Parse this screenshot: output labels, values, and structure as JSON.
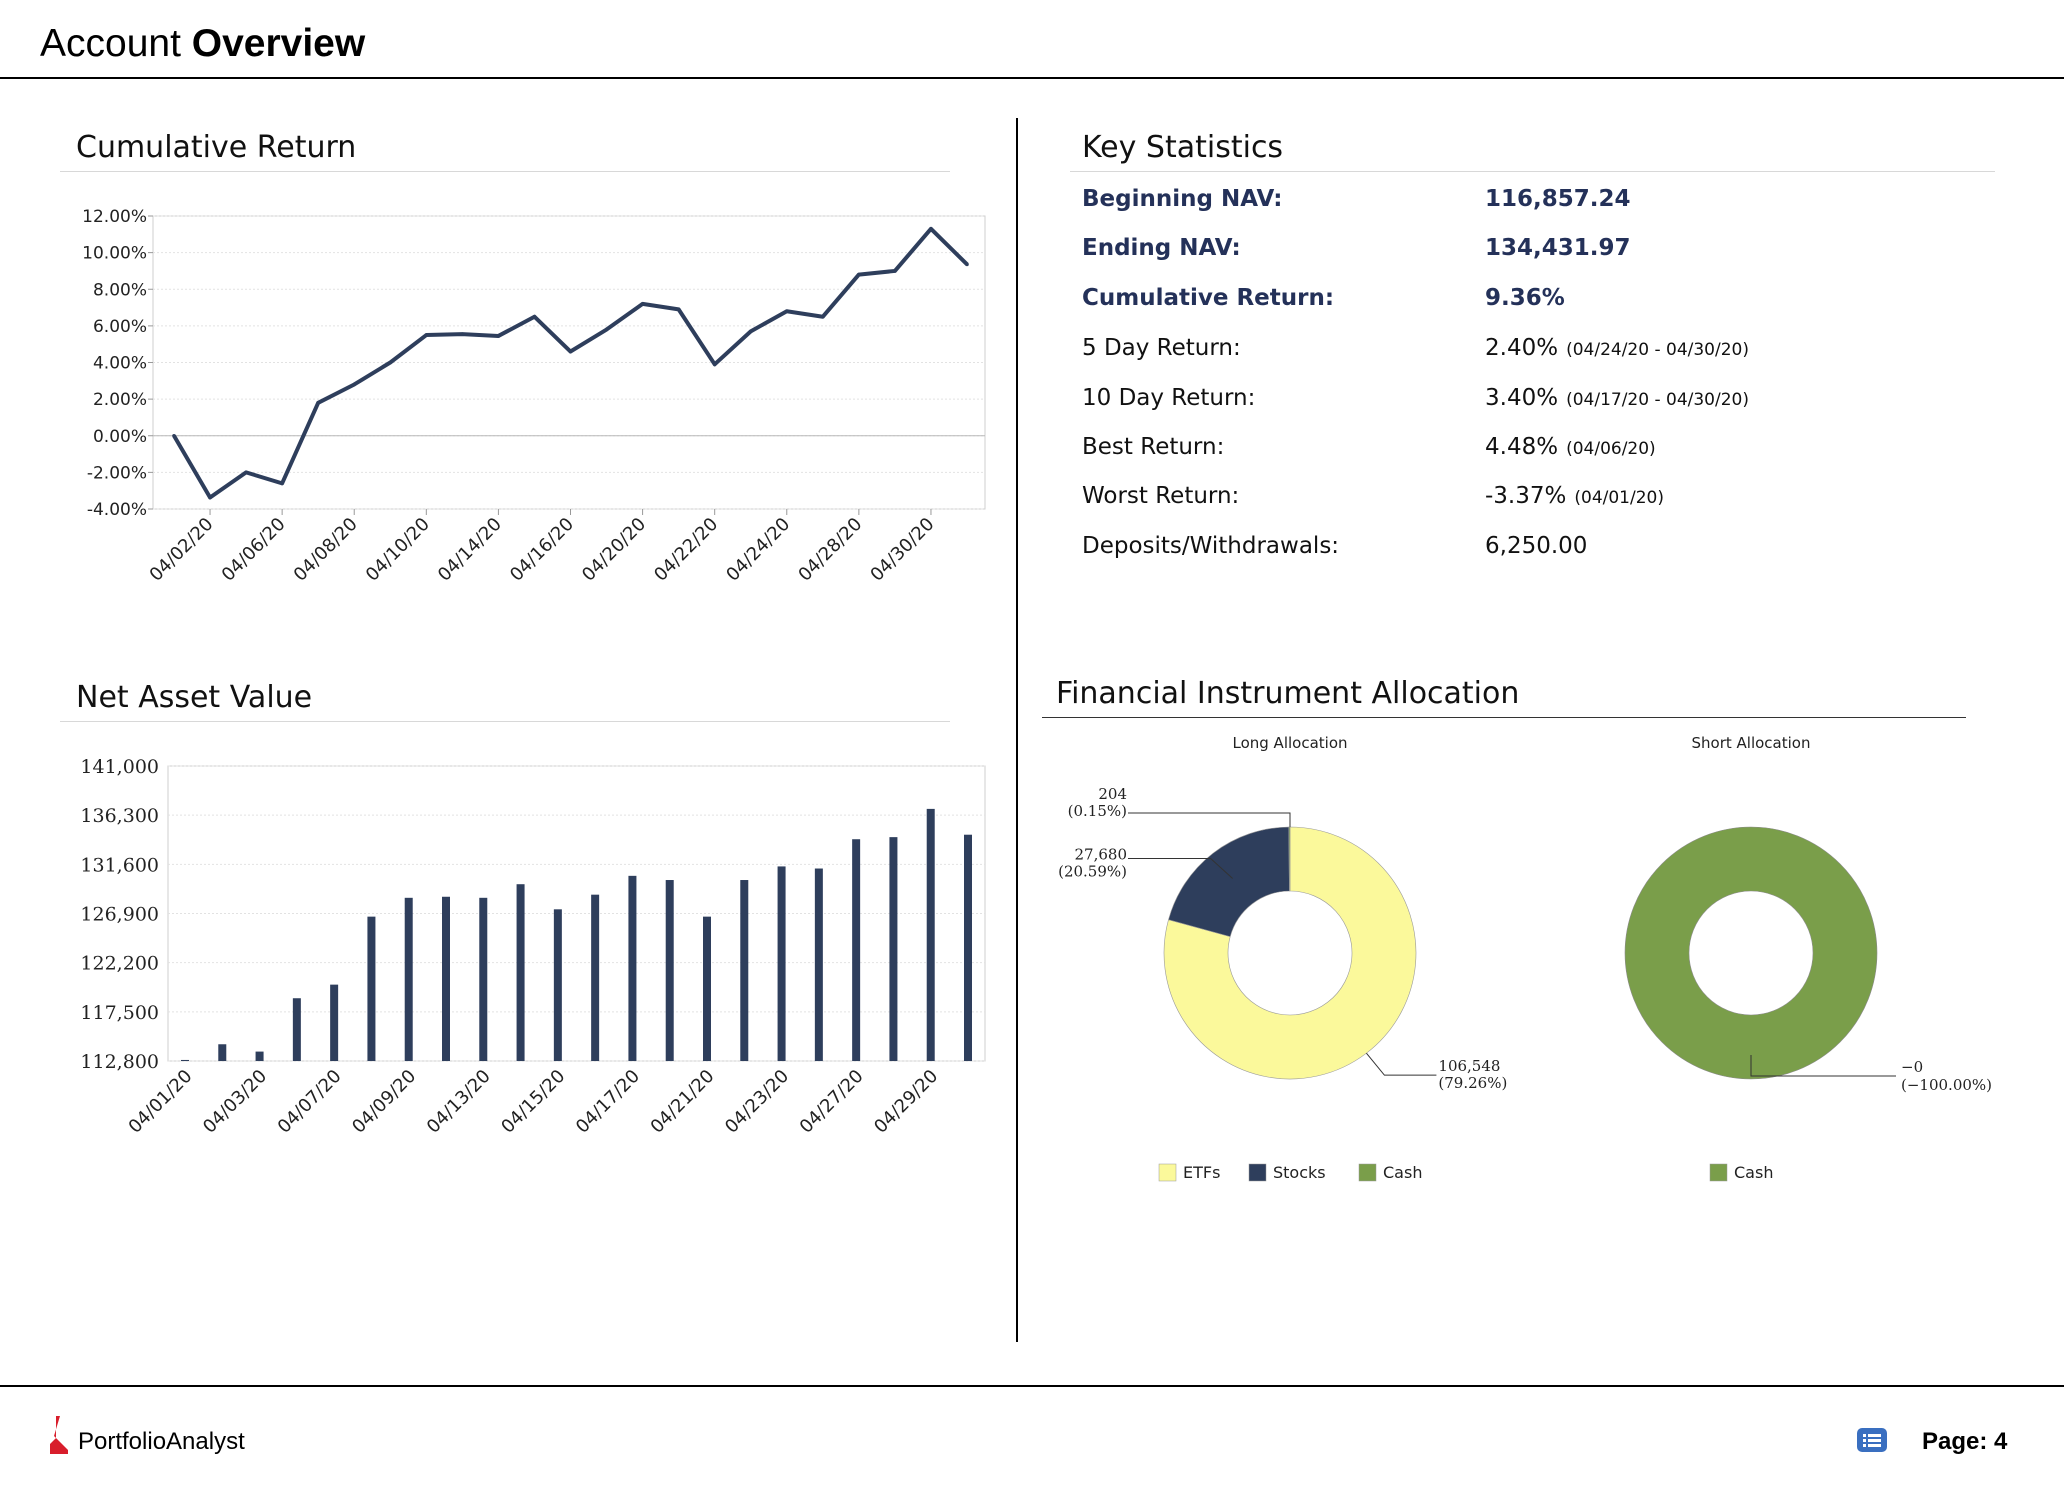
{
  "header": {
    "title_part1": "Account",
    "title_part2": "Overview"
  },
  "colors": {
    "series": "#2e3e5c",
    "etfs": "#fbf99b",
    "stocks": "#2e3e5c",
    "cash": "#7a9e4a",
    "highlight": "#243159"
  },
  "sections": {
    "cumulative_return": "Cumulative Return",
    "net_asset_value": "Net Asset Value",
    "key_statistics": "Key Statistics",
    "allocation": "Financial Instrument Allocation"
  },
  "key_stats": [
    {
      "label": "Beginning NAV:",
      "value": "116,857.24",
      "extra": "",
      "highlight": true
    },
    {
      "label": "Ending NAV:",
      "value": "134,431.97",
      "extra": "",
      "highlight": true
    },
    {
      "label": "Cumulative Return:",
      "value": "9.36%",
      "extra": "",
      "highlight": true
    },
    {
      "label": "5 Day Return:",
      "value": "2.40%",
      "extra": "(04/24/20 - 04/30/20)",
      "highlight": false
    },
    {
      "label": "10 Day Return:",
      "value": "3.40%",
      "extra": "(04/17/20 - 04/30/20)",
      "highlight": false
    },
    {
      "label": "Best Return:",
      "value": "4.48%",
      "extra": "(04/06/20)",
      "highlight": false
    },
    {
      "label": "Worst Return:",
      "value": "-3.37%",
      "extra": "(04/01/20)",
      "highlight": false
    },
    {
      "label": "Deposits/Withdrawals:",
      "value": "6,250.00",
      "extra": "",
      "highlight": false
    }
  ],
  "chart_data": [
    {
      "type": "line",
      "title": "Cumulative Return",
      "ylim": [
        -4,
        12
      ],
      "yticks": [
        "12.00%",
        "10.00%",
        "8.00%",
        "6.00%",
        "4.00%",
        "2.00%",
        "0.00%",
        "-2.00%",
        "-4.00%"
      ],
      "xtick_labels": [
        "04/02/20",
        "04/06/20",
        "04/08/20",
        "04/10/20",
        "04/14/20",
        "04/16/20",
        "04/20/20",
        "04/22/20",
        "04/24/20",
        "04/28/20",
        "04/30/20"
      ],
      "grid": true,
      "series": [
        {
          "values": [
            0.0,
            -3.37,
            -2.0,
            -2.6,
            1.8,
            2.8,
            4.0,
            5.5,
            5.55,
            5.45,
            6.5,
            4.6,
            5.8,
            7.2,
            6.9,
            3.9,
            5.7,
            6.8,
            6.5,
            8.8,
            9.0,
            11.3,
            9.36
          ]
        }
      ]
    },
    {
      "type": "bar",
      "title": "Net Asset Value",
      "ylim": [
        112800,
        141000
      ],
      "yticks": [
        "141,000",
        "136,300",
        "131,600",
        "126,900",
        "122,200",
        "117,500",
        "112,800"
      ],
      "xtick_labels": [
        "04/01/20",
        "04/03/20",
        "04/07/20",
        "04/09/20",
        "04/13/20",
        "04/15/20",
        "04/17/20",
        "04/21/20",
        "04/23/20",
        "04/27/20",
        "04/29/20"
      ],
      "grid": true,
      "series": [
        {
          "values": [
            112900,
            114400,
            113700,
            118800,
            120100,
            126600,
            128400,
            128500,
            128400,
            129700,
            127300,
            128700,
            130500,
            130100,
            126600,
            130100,
            131400,
            131200,
            134000,
            134200,
            136900,
            134432
          ]
        }
      ]
    },
    {
      "type": "pie",
      "title": "Long Allocation",
      "slices": [
        {
          "name": "ETFs",
          "value": 106548,
          "label": "106,548",
          "percent": "(79.26%)"
        },
        {
          "name": "Stocks",
          "value": 27680,
          "label": "27,680",
          "percent": "(20.59%)"
        },
        {
          "name": "Cash",
          "value": 204,
          "label": "204",
          "percent": "(0.15%)"
        }
      ],
      "legend": [
        "ETFs",
        "Stocks",
        "Cash"
      ],
      "legend_position": "bottom"
    },
    {
      "type": "pie",
      "title": "Short Allocation",
      "slices": [
        {
          "name": "Cash",
          "value": 1,
          "label": "−0",
          "percent": "(−100.00%)"
        }
      ],
      "legend": [
        "Cash"
      ],
      "legend_position": "bottom"
    }
  ],
  "footer": {
    "brand": "PortfolioAnalyst",
    "page": "Page: 4",
    "icon": "list-icon"
  }
}
